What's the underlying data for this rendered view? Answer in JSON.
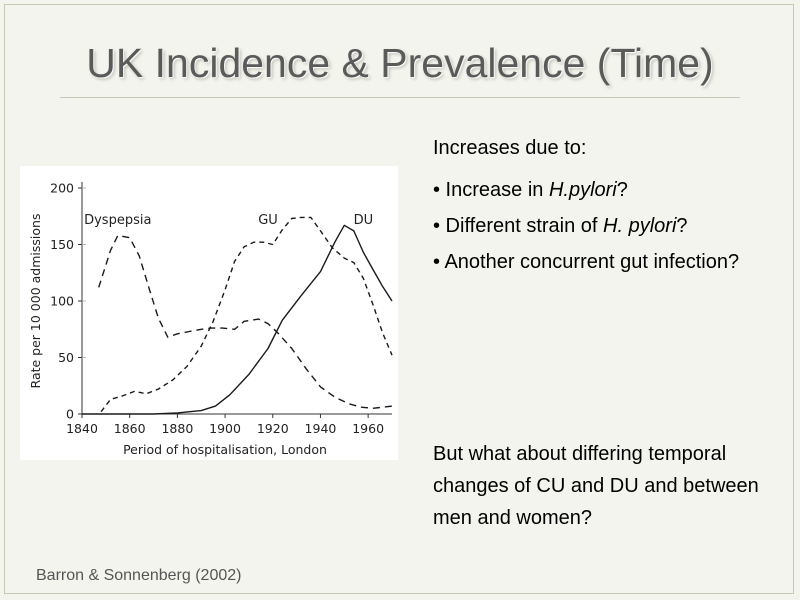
{
  "slide": {
    "title": "UK Incidence & Prevalence (Time)",
    "citation": "Barron & Sonnenberg (2002)"
  },
  "bullets": {
    "lead": "Increases due to:",
    "items": [
      {
        "prefix": "• Increase in ",
        "em": "H.pylori",
        "suffix": "?"
      },
      {
        "prefix": "• Different strain of ",
        "em": "H. pylori",
        "suffix": "?"
      },
      {
        "prefix": "• Another concurrent gut infection?",
        "em": "",
        "suffix": ""
      }
    ],
    "question": "But what about differing temporal changes of CU and DU and between men and women?"
  },
  "chart_data": {
    "type": "line",
    "title": "",
    "xlabel": "Period of hospitalisation, London",
    "ylabel": "Rate per 10 000 admissions",
    "xlim": [
      1840,
      1970
    ],
    "ylim": [
      0,
      200
    ],
    "xticks": [
      1840,
      1860,
      1880,
      1900,
      1920,
      1940,
      1960
    ],
    "yticks": [
      0,
      50,
      100,
      150,
      200
    ],
    "colors": {
      "line": "#1a1a1a",
      "axis": "#333333",
      "grid": "#aaaaaa"
    },
    "series": [
      {
        "name": "Dyspepsia",
        "dash": "7,5",
        "label_at": [
          1855,
          168
        ],
        "points": [
          [
            1847,
            112
          ],
          [
            1852,
            145
          ],
          [
            1855,
            158
          ],
          [
            1860,
            156
          ],
          [
            1864,
            140
          ],
          [
            1868,
            112
          ],
          [
            1872,
            85
          ],
          [
            1876,
            68
          ],
          [
            1880,
            71
          ],
          [
            1885,
            73
          ],
          [
            1890,
            75
          ],
          [
            1894,
            76
          ],
          [
            1899,
            76
          ],
          [
            1904,
            75
          ],
          [
            1908,
            82
          ],
          [
            1914,
            84
          ],
          [
            1918,
            80
          ],
          [
            1922,
            72
          ],
          [
            1928,
            58
          ],
          [
            1934,
            40
          ],
          [
            1940,
            24
          ],
          [
            1946,
            15
          ],
          [
            1952,
            9
          ],
          [
            1957,
            6
          ],
          [
            1962,
            5
          ],
          [
            1966,
            6
          ],
          [
            1970,
            7
          ]
        ]
      },
      {
        "name": "GU",
        "dash": "5,4",
        "label_at": [
          1918,
          168
        ],
        "points": [
          [
            1848,
            2
          ],
          [
            1852,
            13
          ],
          [
            1857,
            16
          ],
          [
            1862,
            20
          ],
          [
            1867,
            18
          ],
          [
            1872,
            22
          ],
          [
            1878,
            30
          ],
          [
            1884,
            42
          ],
          [
            1890,
            60
          ],
          [
            1895,
            82
          ],
          [
            1900,
            110
          ],
          [
            1904,
            135
          ],
          [
            1908,
            148
          ],
          [
            1912,
            152
          ],
          [
            1916,
            152
          ],
          [
            1920,
            150
          ],
          [
            1924,
            163
          ],
          [
            1928,
            173
          ],
          [
            1932,
            174
          ],
          [
            1936,
            174
          ],
          [
            1940,
            162
          ],
          [
            1945,
            147
          ],
          [
            1950,
            138
          ],
          [
            1954,
            134
          ],
          [
            1958,
            120
          ],
          [
            1962,
            97
          ],
          [
            1966,
            72
          ],
          [
            1970,
            52
          ]
        ]
      },
      {
        "name": "DU",
        "dash": "",
        "label_at": [
          1958,
          168
        ],
        "points": [
          [
            1840,
            0
          ],
          [
            1860,
            0
          ],
          [
            1870,
            0
          ],
          [
            1880,
            1
          ],
          [
            1890,
            3
          ],
          [
            1896,
            7
          ],
          [
            1902,
            17
          ],
          [
            1910,
            35
          ],
          [
            1918,
            58
          ],
          [
            1924,
            83
          ],
          [
            1932,
            105
          ],
          [
            1940,
            126
          ],
          [
            1946,
            152
          ],
          [
            1950,
            167
          ],
          [
            1954,
            162
          ],
          [
            1958,
            143
          ],
          [
            1962,
            128
          ],
          [
            1966,
            113
          ],
          [
            1970,
            100
          ]
        ]
      }
    ]
  }
}
